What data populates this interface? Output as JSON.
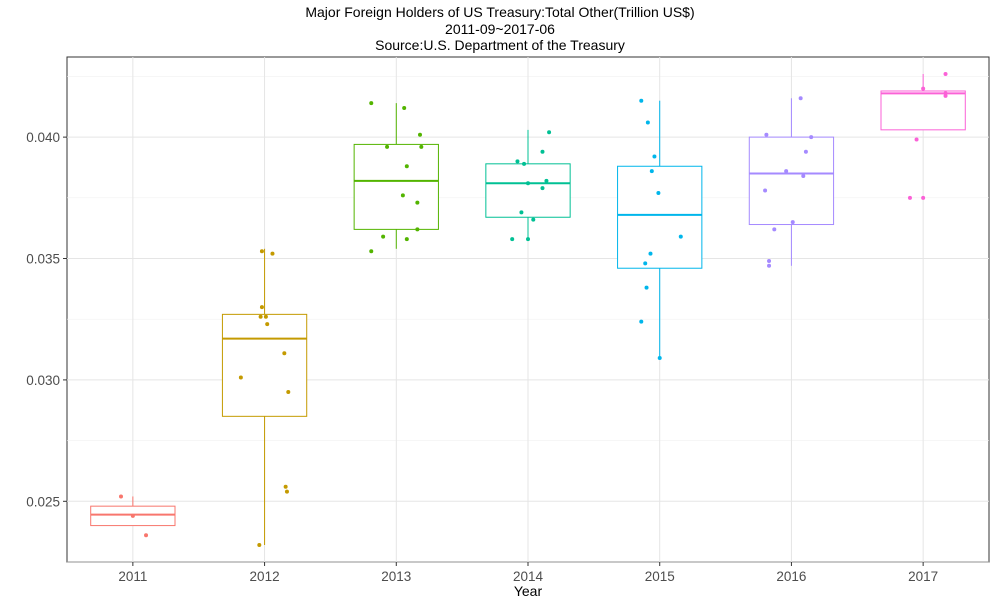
{
  "chart_data": {
    "type": "boxplot",
    "title": "Major Foreign Holders of US Treasury:Total Other(Trillion US$)",
    "subtitle": "2011-09~2017-06",
    "source": "Source:U.S. Department of the Treasury",
    "xlabel": "Year",
    "ylabel": "",
    "ylim": [
      0.0225,
      0.0433
    ],
    "yticks": [
      0.025,
      0.03,
      0.035,
      0.04
    ],
    "ytick_labels": [
      "0.025",
      "0.030",
      "0.035",
      "0.040"
    ],
    "grid": true,
    "legend": "none",
    "categories": [
      "2011",
      "2012",
      "2013",
      "2014",
      "2015",
      "2016",
      "2017"
    ],
    "colors": [
      "#F8766D",
      "#C49A00",
      "#53B400",
      "#00C094",
      "#00B6EB",
      "#A58AFF",
      "#FB61D7"
    ],
    "boxes": [
      {
        "min": 0.024,
        "q1": 0.024,
        "median": 0.02445,
        "q3": 0.0248,
        "max": 0.0252
      },
      {
        "min": 0.0232,
        "q1": 0.0285,
        "median": 0.0317,
        "q3": 0.0327,
        "max": 0.0354
      },
      {
        "min": 0.0354,
        "q1": 0.0362,
        "median": 0.0382,
        "q3": 0.0397,
        "max": 0.0414
      },
      {
        "min": 0.0358,
        "q1": 0.0367,
        "median": 0.0381,
        "q3": 0.0389,
        "max": 0.0403
      },
      {
        "min": 0.0309,
        "q1": 0.0346,
        "median": 0.0368,
        "q3": 0.0388,
        "max": 0.0415
      },
      {
        "min": 0.0347,
        "q1": 0.0364,
        "median": 0.0385,
        "q3": 0.04,
        "max": 0.0416
      },
      {
        "min": 0.0403,
        "q1": 0.0403,
        "median": 0.0418,
        "q3": 0.0419,
        "max": 0.0426
      }
    ],
    "points": [
      [
        [
          -0.09,
          0.0252
        ],
        [
          0.1,
          0.0236
        ],
        [
          0.0,
          0.0244
        ]
      ],
      [
        [
          -0.02,
          0.0353
        ],
        [
          0.06,
          0.0352
        ],
        [
          -0.02,
          0.033
        ],
        [
          -0.03,
          0.0326
        ],
        [
          0.01,
          0.0326
        ],
        [
          0.02,
          0.0323
        ],
        [
          0.15,
          0.0311
        ],
        [
          -0.18,
          0.0301
        ],
        [
          0.18,
          0.0295
        ],
        [
          0.16,
          0.0256
        ],
        [
          0.17,
          0.0254
        ],
        [
          -0.04,
          0.0232
        ]
      ],
      [
        [
          -0.19,
          0.0414
        ],
        [
          0.06,
          0.0412
        ],
        [
          0.18,
          0.0401
        ],
        [
          -0.07,
          0.0396
        ],
        [
          0.19,
          0.0396
        ],
        [
          0.08,
          0.0388
        ],
        [
          0.05,
          0.0376
        ],
        [
          0.16,
          0.0373
        ],
        [
          0.16,
          0.0362
        ],
        [
          -0.1,
          0.0359
        ],
        [
          0.08,
          0.0358
        ],
        [
          -0.19,
          0.0353
        ]
      ],
      [
        [
          0.16,
          0.0402
        ],
        [
          0.11,
          0.0394
        ],
        [
          -0.08,
          0.039
        ],
        [
          -0.03,
          0.0389
        ],
        [
          0.14,
          0.0382
        ],
        [
          0.0,
          0.0381
        ],
        [
          0.11,
          0.0379
        ],
        [
          -0.05,
          0.0369
        ],
        [
          0.04,
          0.0366
        ],
        [
          -0.12,
          0.0358
        ],
        [
          0.0,
          0.0358
        ]
      ],
      [
        [
          -0.14,
          0.0415
        ],
        [
          -0.09,
          0.0406
        ],
        [
          -0.04,
          0.0392
        ],
        [
          -0.06,
          0.0386
        ],
        [
          -0.01,
          0.0377
        ],
        [
          0.16,
          0.0359
        ],
        [
          -0.07,
          0.0352
        ],
        [
          -0.11,
          0.0348
        ],
        [
          -0.1,
          0.0338
        ],
        [
          -0.14,
          0.0324
        ],
        [
          0.0,
          0.0309
        ]
      ],
      [
        [
          0.07,
          0.0416
        ],
        [
          -0.19,
          0.0401
        ],
        [
          0.15,
          0.04
        ],
        [
          0.11,
          0.0394
        ],
        [
          -0.04,
          0.0386
        ],
        [
          0.09,
          0.0384
        ],
        [
          -0.2,
          0.0378
        ],
        [
          0.01,
          0.0365
        ],
        [
          -0.13,
          0.0362
        ],
        [
          -0.17,
          0.0349
        ],
        [
          -0.17,
          0.0347
        ]
      ],
      [
        [
          0.17,
          0.0426
        ],
        [
          0.0,
          0.042
        ],
        [
          0.17,
          0.0418
        ],
        [
          0.17,
          0.0417
        ],
        [
          -0.05,
          0.0399
        ],
        [
          -0.1,
          0.0375
        ],
        [
          0.0,
          0.0375
        ]
      ]
    ]
  }
}
